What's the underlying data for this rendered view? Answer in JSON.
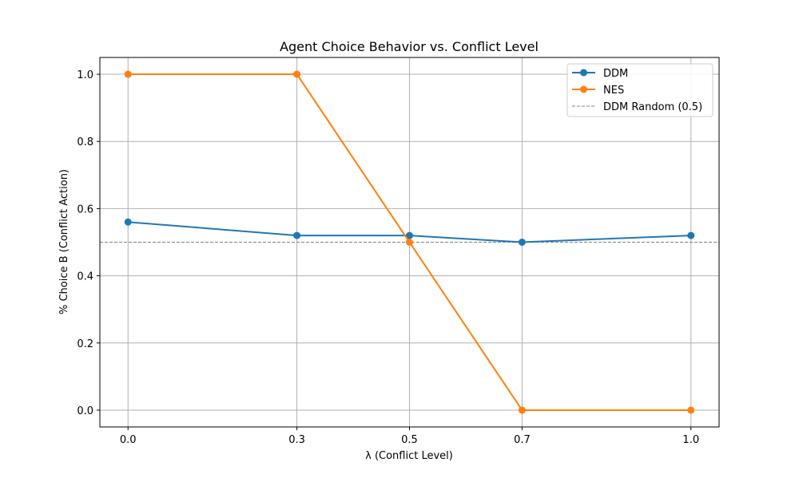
{
  "chart_data": {
    "type": "line",
    "title": "Agent Choice Behavior vs. Conflict Level",
    "xlabel": "λ (Conflict Level)",
    "ylabel": "% Choice B (Conflict Action)",
    "x": [
      0.0,
      0.3,
      0.5,
      0.7,
      1.0
    ],
    "x_tick_labels": [
      "0.0",
      "0.3",
      "0.5",
      "0.7",
      "1.0"
    ],
    "y_ticks": [
      0.0,
      0.2,
      0.4,
      0.6,
      0.8,
      1.0
    ],
    "y_tick_labels": [
      "0.0",
      "0.2",
      "0.4",
      "0.6",
      "0.8",
      "1.0"
    ],
    "xlim": [
      -0.05,
      1.05
    ],
    "ylim": [
      -0.05,
      1.05
    ],
    "grid": true,
    "legend_position": "top-right",
    "series": [
      {
        "name": "DDM",
        "values": [
          0.56,
          0.52,
          0.52,
          0.5,
          0.52
        ],
        "color": "#1f77b4",
        "marker": "circle"
      },
      {
        "name": "NES",
        "values": [
          1.0,
          1.0,
          0.5,
          0.0,
          0.0
        ],
        "color": "#ff7f0e",
        "marker": "circle"
      }
    ],
    "reference_lines": [
      {
        "name": "DDM Random (0.5)",
        "y": 0.5,
        "color": "#808080",
        "style": "dashed"
      }
    ]
  }
}
